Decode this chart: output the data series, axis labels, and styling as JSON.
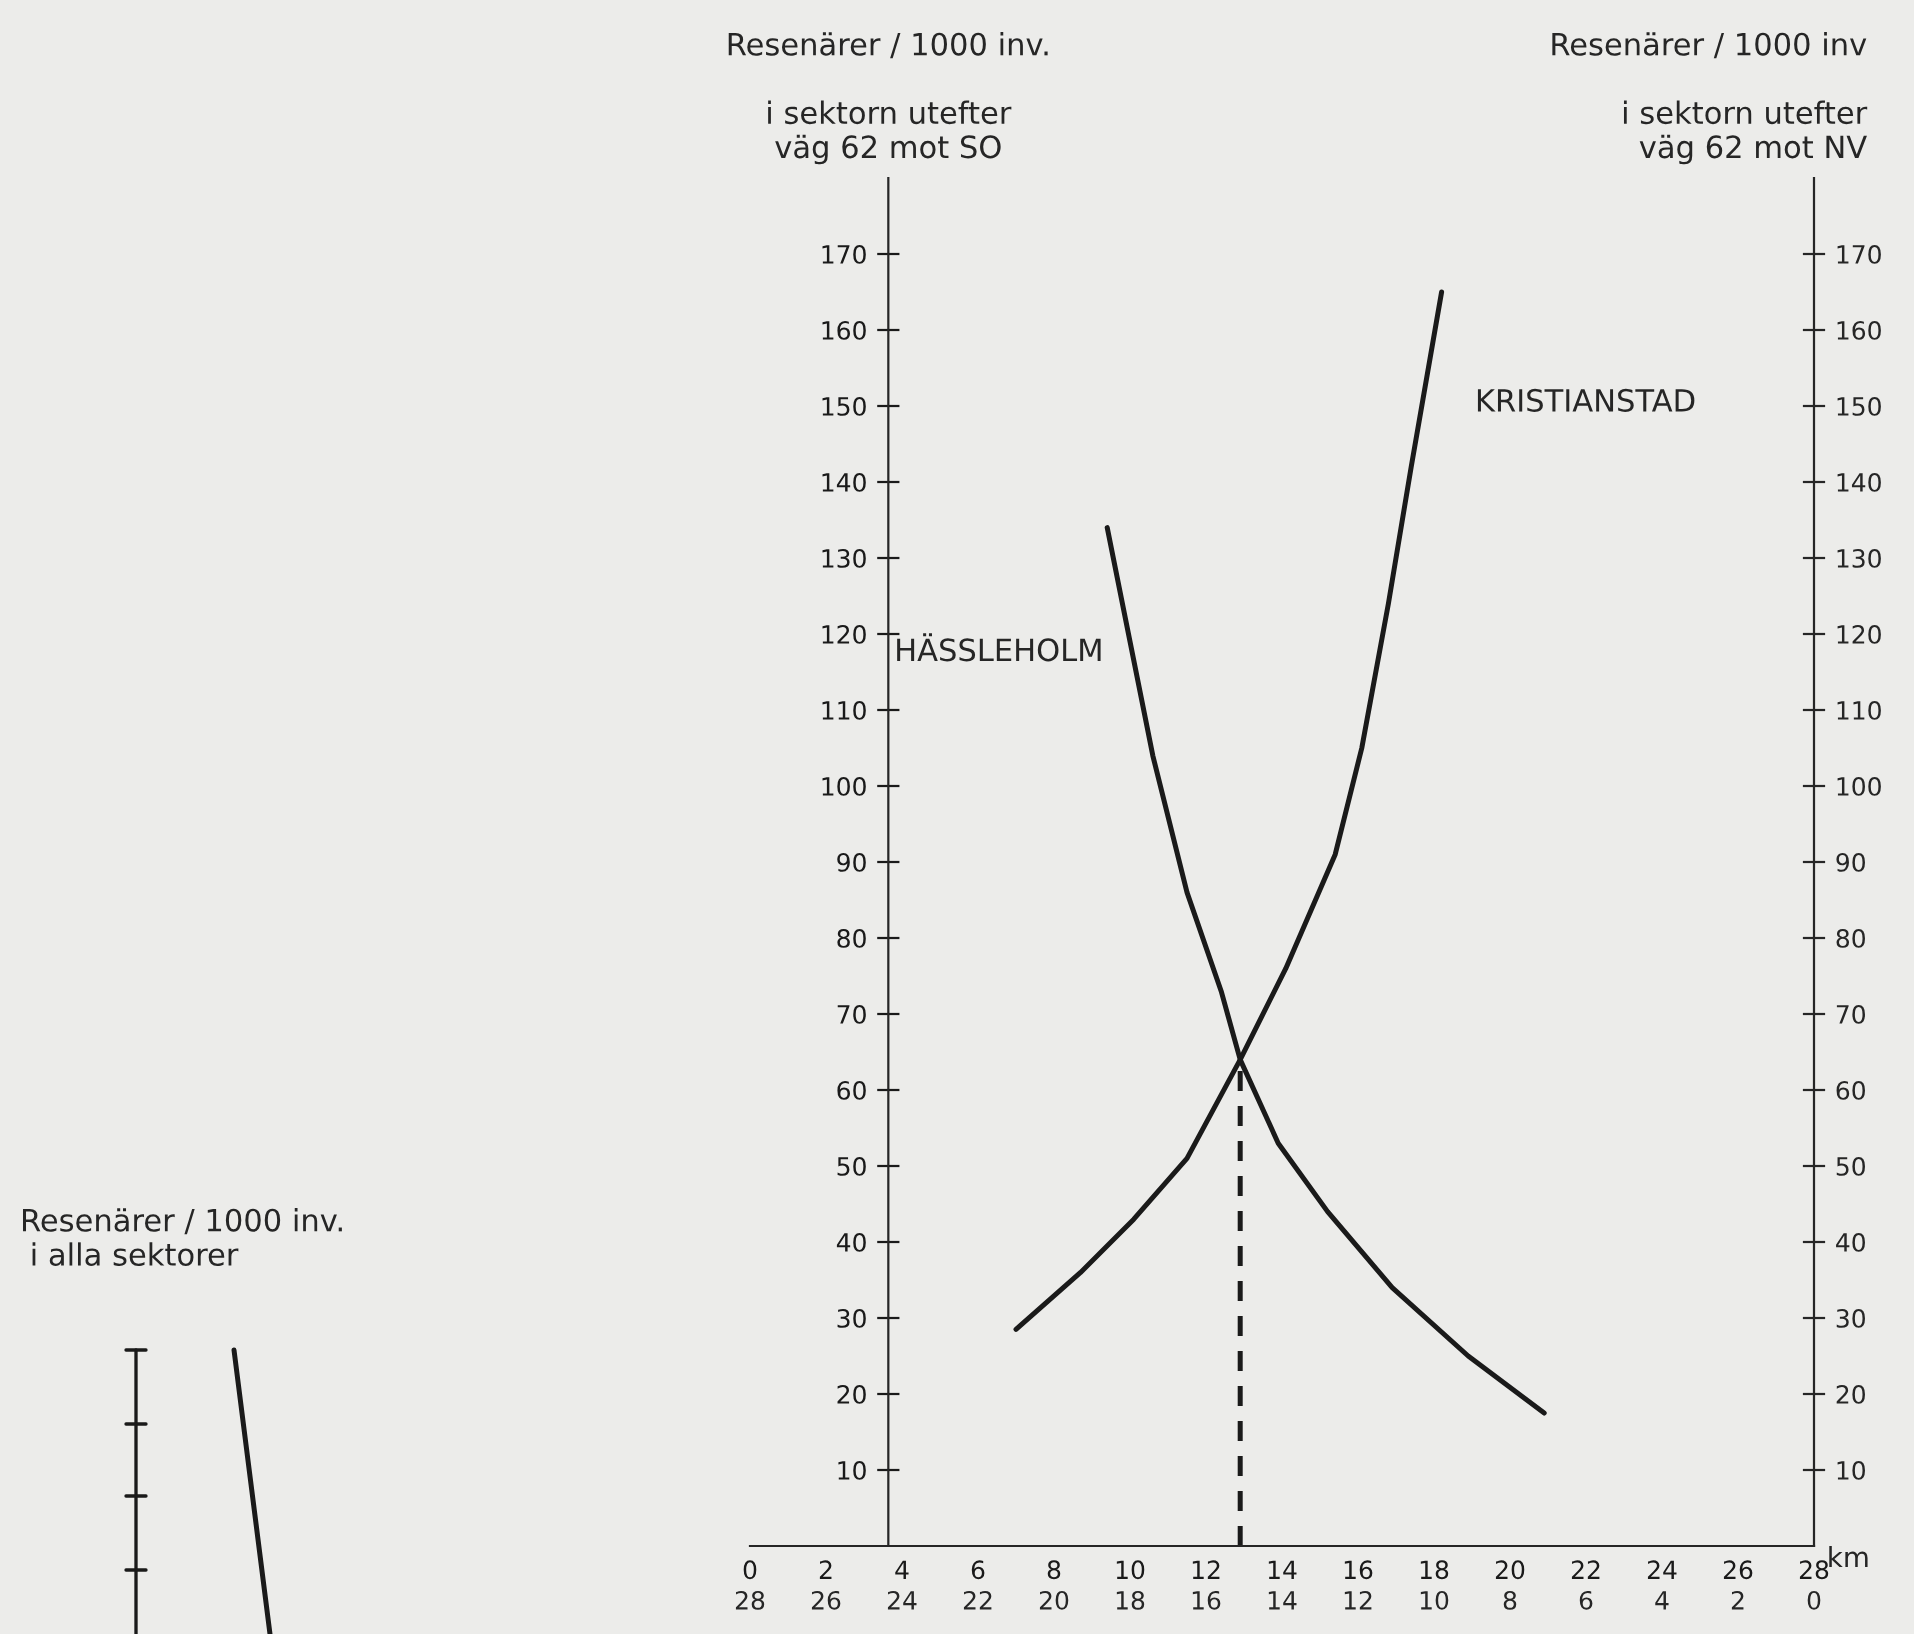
{
  "chart_data": {
    "type": "line",
    "ylabel": "Resenärer / 1000 inv.\n\ni sektorn utefter\nväg 62 mot SO",
    "y2label": "Resenärer / 1000 inv\n\ni sektorn utefter\nväg 62 mot NV",
    "xlabel": "km",
    "xlim": [
      0,
      28
    ],
    "xticks": [
      0,
      2,
      4,
      6,
      8,
      10,
      12,
      14,
      16,
      18,
      20,
      22,
      24,
      26,
      28
    ],
    "x2lim": [
      28,
      0
    ],
    "x2ticks": [
      28,
      26,
      24,
      22,
      20,
      18,
      16,
      14,
      12,
      10,
      8,
      6,
      4,
      2,
      0
    ],
    "ylim": [
      0,
      180
    ],
    "yticks": [
      10,
      20,
      30,
      40,
      50,
      60,
      70,
      80,
      90,
      100,
      110,
      120,
      130,
      140,
      150,
      160,
      170
    ],
    "y2lim": [
      0,
      180
    ],
    "y2ticks": [
      10,
      20,
      30,
      40,
      50,
      60,
      70,
      80,
      90,
      100,
      110,
      120,
      130,
      140,
      150,
      160,
      170
    ],
    "grid": false,
    "marker": "none",
    "annotations": [
      "Resenärer / 1000 inv.\n i alla sektorer"
    ],
    "series": [
      {
        "name": "HÄSSLEHOLM",
        "color": "#1a1a1a",
        "line_style": "solid",
        "x": [
          9.4,
          10.0,
          10.6,
          11.5,
          12.4,
          12.9,
          13.9,
          15.2,
          16.9,
          18.9,
          20.9
        ],
        "values": [
          134,
          119,
          104,
          86,
          73,
          64,
          53,
          44,
          34,
          25,
          17.5
        ]
      },
      {
        "name": "KRISTIANSTAD",
        "color": "#1a1a1a",
        "line_style": "solid",
        "x": [
          7.0,
          8.7,
          10.1,
          11.5,
          12.9,
          14.1,
          15.4,
          16.1,
          16.8,
          17.4,
          18.2
        ],
        "values": [
          28.5,
          36,
          43,
          51,
          64,
          76,
          91,
          105,
          124,
          142,
          165
        ]
      },
      {
        "color": "#1a1a1a",
        "line_style": "dashed",
        "x": [
          12.9,
          12.9
        ],
        "values": [
          0,
          64
        ]
      }
    ]
  }
}
